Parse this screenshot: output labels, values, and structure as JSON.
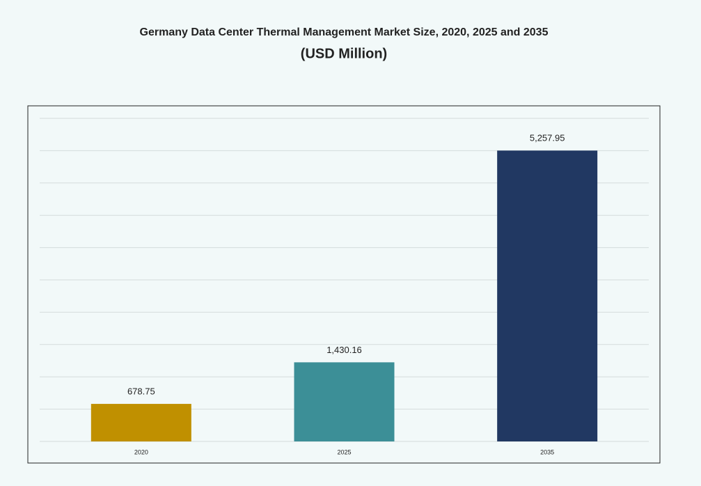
{
  "chart_data": {
    "type": "bar",
    "title": "Germany Data Center Thermal Management Market Size, 2020, 2025 and 2035",
    "subtitle": "(USD Million)",
    "categories": [
      "2020",
      "2025",
      "2035"
    ],
    "values": [
      678.75,
      1430.16,
      5257.95
    ],
    "value_labels": [
      "678.75",
      "1,430.16",
      "5,257.95"
    ],
    "colors": [
      "#c09000",
      "#3c8f97",
      "#213862"
    ],
    "ylim": [
      0,
      5840
    ],
    "grid": true
  }
}
